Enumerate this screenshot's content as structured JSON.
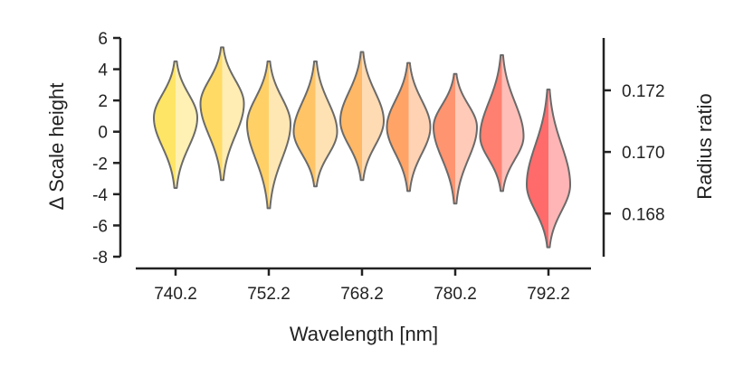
{
  "chart_data": {
    "type": "violin",
    "xlabel": "Wavelength [nm]",
    "ylabel_left": "Δ Scale height",
    "ylabel_right": "Radius ratio",
    "left_axis": {
      "ylim": [
        -8,
        6
      ],
      "ticks": [
        6,
        4,
        2,
        0,
        -2,
        -4,
        -6,
        -8
      ],
      "tick_labels": [
        "6",
        "4",
        "2",
        "0",
        "-2",
        "-4",
        "-6",
        "-8"
      ]
    },
    "right_axis": {
      "ylim": [
        0.1666,
        0.1737
      ],
      "ticks": [
        0.168,
        0.17,
        0.172
      ],
      "tick_labels": [
        "0.168",
        "0.170",
        "0.172"
      ]
    },
    "x_tick_labels": [
      "740.2",
      "752.2",
      "768.2",
      "780.2",
      "792.2"
    ],
    "violins": [
      {
        "index": 0,
        "labeled": true,
        "center": 0.9,
        "min": -3.6,
        "max": 4.5,
        "color_left": "#ffe566",
        "color_right": "#fff1b3"
      },
      {
        "index": 1,
        "labeled": false,
        "center": 1.8,
        "min": -3.1,
        "max": 5.4,
        "color_left": "#ffdb66",
        "color_right": "#ffedb3"
      },
      {
        "index": 2,
        "labeled": true,
        "center": 0.5,
        "min": -4.9,
        "max": 4.5,
        "color_left": "#ffd066",
        "color_right": "#ffe7b3"
      },
      {
        "index": 3,
        "labeled": false,
        "center": 0.0,
        "min": -3.5,
        "max": 4.5,
        "color_left": "#ffc466",
        "color_right": "#ffe2b3"
      },
      {
        "index": 4,
        "labeled": true,
        "center": 0.7,
        "min": -3.1,
        "max": 5.1,
        "color_left": "#ffb866",
        "color_right": "#ffdbb3"
      },
      {
        "index": 5,
        "labeled": false,
        "center": 0.3,
        "min": -3.8,
        "max": 4.4,
        "color_left": "#ffa466",
        "color_right": "#ffd2b3"
      },
      {
        "index": 6,
        "labeled": true,
        "center": 0.3,
        "min": -4.6,
        "max": 3.7,
        "color_left": "#ff9470",
        "color_right": "#ffcab8"
      },
      {
        "index": 7,
        "labeled": false,
        "center": -0.3,
        "min": -3.8,
        "max": 4.9,
        "color_left": "#ff8070",
        "color_right": "#ffbfb8"
      },
      {
        "index": 8,
        "labeled": true,
        "center": -3.4,
        "min": -7.4,
        "max": 2.7,
        "color_left": "#ff6b6b",
        "color_right": "#ffb5b5"
      }
    ]
  }
}
